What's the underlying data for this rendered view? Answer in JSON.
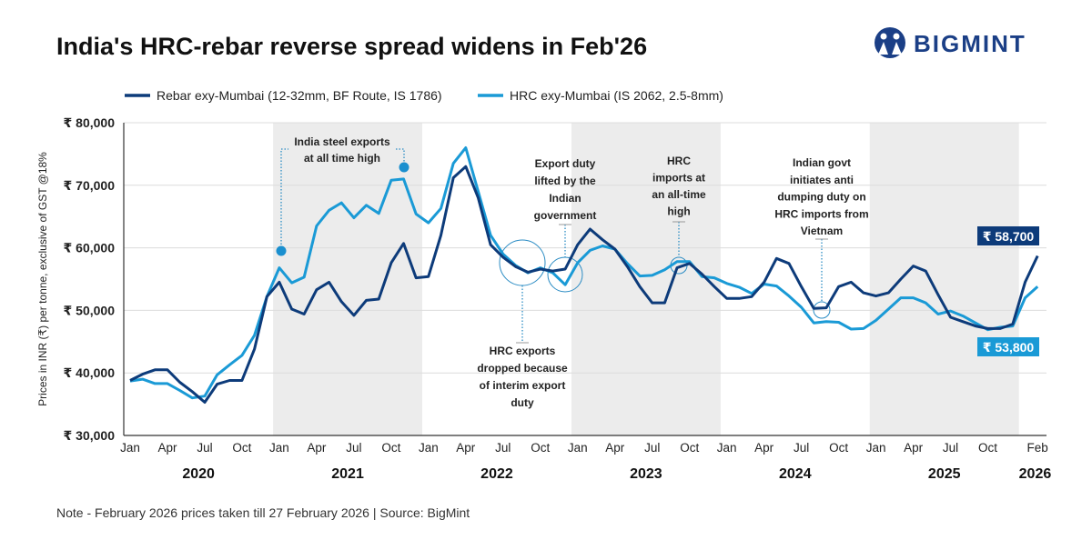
{
  "title": "India's HRC-rebar reverse spread widens in Feb'26",
  "logo_text": "BIGMINT",
  "note": "Note - February 2026 prices taken till  27 February 2026  |  Source: BigMint",
  "colors": {
    "rebar": "#0d3b7a",
    "hrc": "#1a9ad6",
    "band": "#ececec",
    "annotation": "#2b8cc4"
  },
  "chart_data": {
    "type": "line",
    "ylabel": "Prices in INR (₹) per tonne, exclusive of GST @18%",
    "ylim": [
      30000,
      80000
    ],
    "yticks": [
      "₹ 30,000",
      "₹ 40,000",
      "₹ 50,000",
      "₹ 60,000",
      "₹ 70,000",
      "₹ 80,000"
    ],
    "ytick_values": [
      30000,
      40000,
      50000,
      60000,
      70000,
      80000
    ],
    "x_start": "Jan 2020",
    "x_end": "Feb 2026",
    "xtick_labels": [
      "Jan",
      "Apr",
      "Jul",
      "Oct",
      "Jan",
      "Apr",
      "Jul",
      "Oct",
      "Jan",
      "Apr",
      "Jul",
      "Oct",
      "Jan",
      "Apr",
      "Jul",
      "Oct",
      "Jan",
      "Apr",
      "Jul",
      "Oct",
      "Jan",
      "Apr",
      "Jul",
      "Oct",
      "Feb"
    ],
    "years": [
      "2020",
      "2021",
      "2022",
      "2023",
      "2024",
      "2025",
      "2026"
    ],
    "shaded_years": [
      "2021",
      "2023",
      "2025"
    ],
    "grid": true,
    "legend_position": "top",
    "series": [
      {
        "name": "Rebar exy-Mumbai (12-32mm, BF Route, IS 1786)",
        "color": "#0d3b7a",
        "values": [
          38800,
          39800,
          40500,
          40500,
          38500,
          37000,
          35300,
          38200,
          38800,
          38800,
          43800,
          52200,
          54500,
          50200,
          49400,
          53300,
          54500,
          51400,
          49200,
          51600,
          51800,
          57600,
          60700,
          55200,
          55400,
          62000,
          71200,
          73000,
          68000,
          60500,
          58500,
          57000,
          56100,
          56600,
          56300,
          56600,
          60500,
          63000,
          61300,
          59800,
          57000,
          53800,
          51200,
          51200,
          56800,
          57500,
          55800,
          53800,
          51900,
          51900,
          52200,
          54500,
          58300,
          57500,
          53800,
          50300,
          50400,
          53800,
          54500,
          52800,
          52300,
          52800,
          55000,
          57100,
          56300,
          52500,
          48900,
          48200,
          47500,
          47100,
          47100,
          47800,
          54500,
          58700
        ]
      },
      {
        "name": "HRC exy-Mumbai (IS 2062, 2.5-8mm)",
        "color": "#1a9ad6",
        "values": [
          38700,
          39000,
          38300,
          38300,
          37200,
          36000,
          36300,
          39700,
          41300,
          42800,
          46000,
          52200,
          56800,
          54400,
          55300,
          63500,
          66000,
          67200,
          64800,
          66800,
          65500,
          70800,
          71000,
          65400,
          64000,
          66300,
          73500,
          76000,
          69000,
          62000,
          59000,
          57200,
          56000,
          56800,
          56000,
          54100,
          57600,
          59600,
          60300,
          59800,
          57500,
          55500,
          55600,
          56500,
          57800,
          57800,
          55400,
          55200,
          54300,
          53700,
          52700,
          54200,
          53900,
          52300,
          50500,
          48000,
          48200,
          48100,
          47000,
          47100,
          48400,
          50200,
          52000,
          52000,
          51200,
          49400,
          49900,
          49100,
          48000,
          46900,
          47300,
          47500,
          52000,
          53800
        ]
      }
    ],
    "end_labels": {
      "rebar": "₹ 58,700",
      "hrc": "₹ 53,800"
    },
    "annotations": [
      {
        "lines": [
          "India steel exports",
          "at all time high"
        ]
      },
      {
        "lines": [
          "HRC exports",
          "dropped because",
          "of interim export",
          "duty"
        ]
      },
      {
        "lines": [
          "Export duty",
          "lifted by the",
          "Indian",
          "government"
        ]
      },
      {
        "lines": [
          "HRC",
          "imports at",
          "an all-time",
          "high"
        ]
      },
      {
        "lines": [
          "Indian govt",
          "initiates anti",
          "dumping duty on",
          "HRC imports from",
          "Vietnam"
        ]
      }
    ]
  }
}
